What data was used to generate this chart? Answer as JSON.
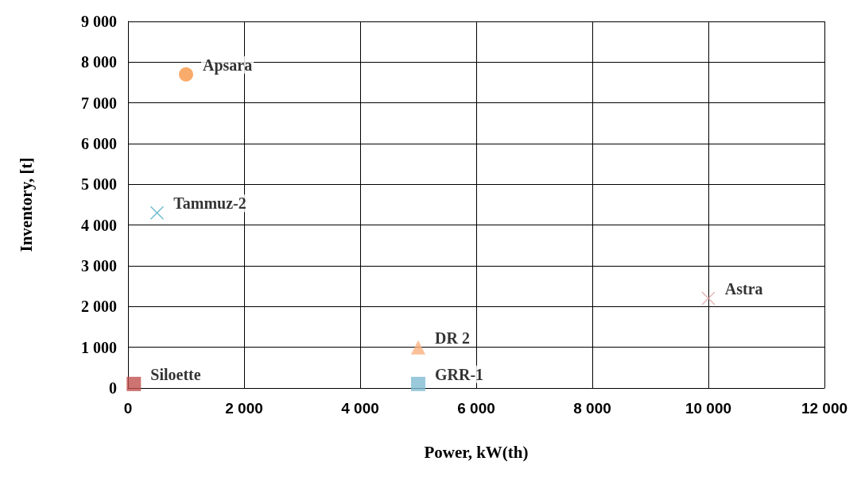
{
  "chart_data": {
    "type": "scatter",
    "xlabel": "Power, kW(th)",
    "ylabel": "Inventory, [t]",
    "xlim": [
      0,
      12000
    ],
    "xticks": [
      0,
      {
        "value": 2000,
        "label": "2 000"
      },
      {
        "value": 4000,
        "label": "4 000"
      },
      {
        "value": 6000,
        "label": "6 000"
      },
      {
        "value": 8000,
        "label": "8 000"
      },
      {
        "value": 10000,
        "label": "10 000"
      },
      {
        "value": 12000,
        "label": "12 000"
      }
    ],
    "ylim": [
      0,
      9000
    ],
    "yticks": [
      0,
      {
        "value": 1000,
        "label": "1 000"
      },
      {
        "value": 2000,
        "label": "2 000"
      },
      {
        "value": 3000,
        "label": "3 000"
      },
      {
        "value": 4000,
        "label": "4 000"
      },
      {
        "value": 5000,
        "label": "5 000"
      },
      {
        "value": 6000,
        "label": "6 000"
      },
      {
        "value": 7000,
        "label": "7 000"
      },
      {
        "value": 8000,
        "label": "8 000"
      },
      {
        "value": 9000,
        "label": "9 000"
      }
    ],
    "grid": true,
    "legend": false,
    "series": [
      {
        "name": "Apsara",
        "color": "#f79646",
        "marker": "circle",
        "x": [
          1000
        ],
        "values": [
          7700
        ]
      },
      {
        "name": "Tammuz-2",
        "color": "#4bacc6",
        "marker": "cross",
        "x": [
          500
        ],
        "values": [
          4300
        ]
      },
      {
        "name": "Astra",
        "color": "#d9a3a3",
        "marker": "cross",
        "x": [
          10000
        ],
        "values": [
          2200
        ]
      },
      {
        "name": "DR 2",
        "color": "#fab07f",
        "marker": "triangle",
        "x": [
          5000
        ],
        "values": [
          1000
        ]
      },
      {
        "name": "Siloette",
        "color": "#c0504d",
        "marker": "square",
        "x": [
          100
        ],
        "values": [
          100
        ]
      },
      {
        "name": "GRR-1",
        "color": "#7fbcd2",
        "marker": "square",
        "x": [
          5000
        ],
        "values": [
          100
        ]
      }
    ]
  }
}
